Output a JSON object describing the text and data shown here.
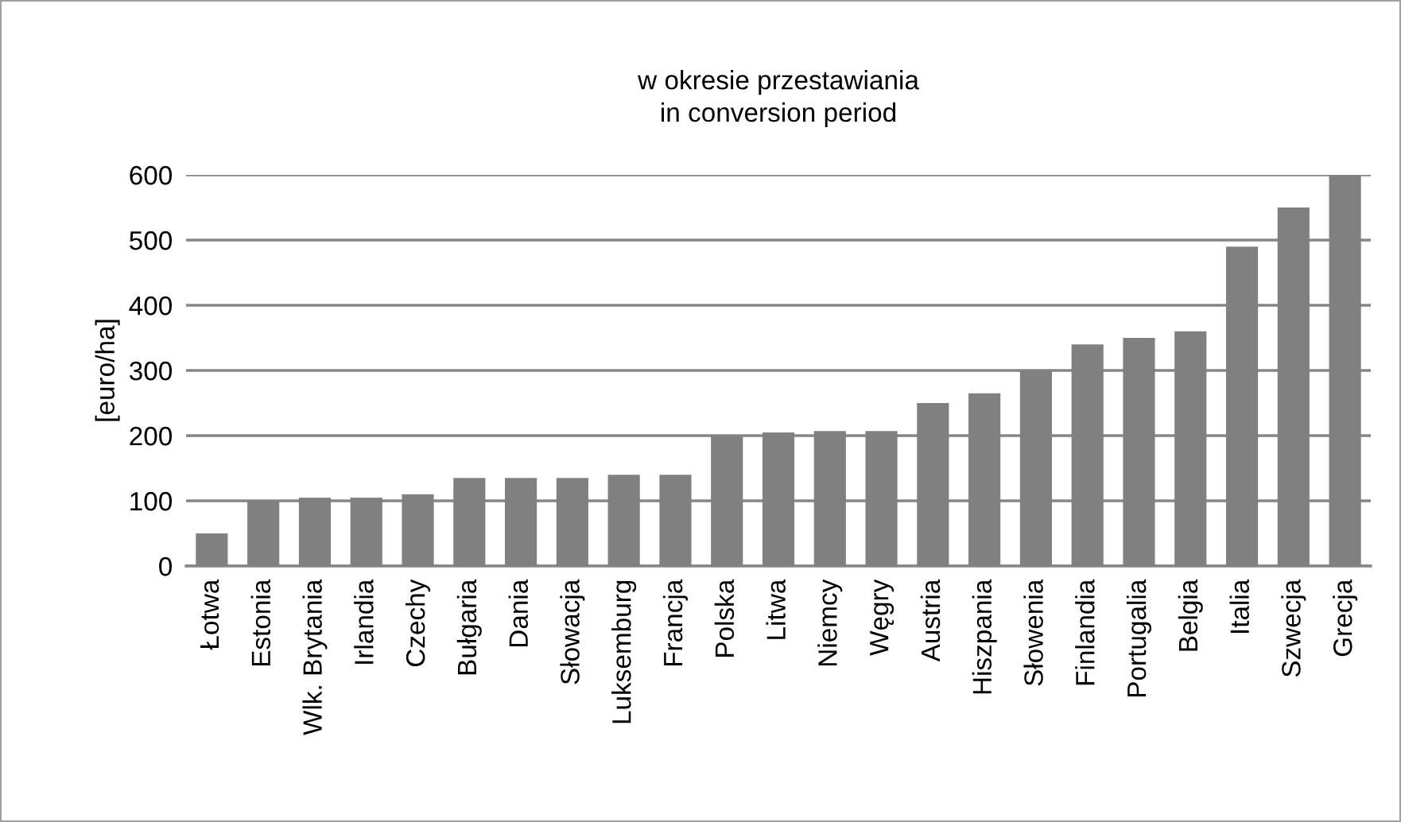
{
  "chart_data": {
    "type": "bar",
    "title": "w okresie przestawiania\nin conversion period",
    "ylabel": "[euro/ha]",
    "categories": [
      "Łotwa",
      "Estonia",
      "Wlk. Brytania",
      "Irlandia",
      "Czechy",
      "Bułgaria",
      "Dania",
      "Słowacja",
      "Luksemburg",
      "Francja",
      "Polska",
      "Litwa",
      "Niemcy",
      "Węgry",
      "Austria",
      "Hiszpania",
      "Słowenia",
      "Finlandia",
      "Portugalia",
      "Belgia",
      "Italia",
      "Szwecja",
      "Grecja"
    ],
    "values": [
      50,
      100,
      105,
      105,
      110,
      135,
      135,
      135,
      140,
      140,
      200,
      205,
      207,
      207,
      250,
      265,
      300,
      340,
      350,
      360,
      490,
      550,
      600
    ],
    "color": "#808080",
    "ylim": [
      0,
      600
    ],
    "yticks": [
      0,
      100,
      200,
      300,
      400,
      500,
      600
    ],
    "grid": "y"
  }
}
